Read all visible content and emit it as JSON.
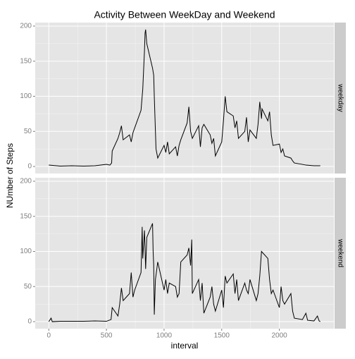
{
  "chart_data": {
    "type": "line",
    "title": "Activity Between WeekDay and Weekend",
    "x_label": "interval",
    "y_label": "NUmber of Steps",
    "xlim": [
      -117.75,
      2472.75
    ],
    "xticks": [
      0,
      500,
      1000,
      1500,
      2000
    ],
    "ylim": [
      -10,
      205
    ],
    "yticks": [
      0,
      50,
      100,
      150,
      200
    ],
    "grid": true,
    "series": [
      {
        "name": "weekday",
        "color": "#000000",
        "x": [
          0,
          100,
          200,
          300,
          400,
          500,
          530,
          545,
          550,
          600,
          615,
          630,
          645,
          700,
          715,
          730,
          745,
          800,
          815,
          830,
          835,
          840,
          850,
          900,
          910,
          915,
          925,
          930,
          945,
          1000,
          1015,
          1030,
          1045,
          1100,
          1115,
          1130,
          1145,
          1200,
          1215,
          1230,
          1245,
          1300,
          1315,
          1330,
          1345,
          1400,
          1415,
          1430,
          1445,
          1500,
          1515,
          1530,
          1545,
          1600,
          1615,
          1630,
          1645,
          1700,
          1715,
          1730,
          1745,
          1800,
          1815,
          1830,
          1845,
          1850,
          1900,
          1915,
          1930,
          1945,
          2000,
          2015,
          2030,
          2045,
          2100,
          2115,
          2130,
          2200,
          2230,
          2300,
          2355
        ],
        "values": [
          2,
          0.5,
          1,
          0.5,
          1,
          3,
          2,
          5,
          22,
          40,
          48,
          58,
          38,
          45,
          35,
          48,
          55,
          80,
          110,
          165,
          190,
          195,
          175,
          140,
          130,
          100,
          50,
          25,
          12,
          30,
          20,
          35,
          18,
          28,
          15,
          30,
          38,
          62,
          85,
          50,
          40,
          58,
          28,
          55,
          60,
          45,
          33,
          40,
          15,
          35,
          65,
          100,
          78,
          72,
          55,
          65,
          40,
          50,
          70,
          35,
          52,
          40,
          60,
          92,
          68,
          82,
          65,
          78,
          45,
          30,
          32,
          20,
          25,
          15,
          12,
          8,
          5,
          3,
          2,
          1,
          1
        ]
      },
      {
        "name": "weekend",
        "color": "#000000",
        "x": [
          0,
          20,
          30,
          100,
          200,
          300,
          400,
          500,
          540,
          550,
          600,
          615,
          630,
          645,
          700,
          715,
          730,
          745,
          800,
          810,
          815,
          830,
          840,
          850,
          900,
          905,
          910,
          915,
          925,
          945,
          1000,
          1015,
          1030,
          1045,
          1100,
          1115,
          1130,
          1145,
          1200,
          1215,
          1230,
          1240,
          1245,
          1300,
          1315,
          1330,
          1345,
          1400,
          1415,
          1430,
          1445,
          1500,
          1515,
          1530,
          1545,
          1600,
          1615,
          1630,
          1645,
          1700,
          1715,
          1730,
          1745,
          1800,
          1815,
          1830,
          1845,
          1900,
          1915,
          1930,
          1945,
          2000,
          2015,
          2030,
          2045,
          2100,
          2115,
          2130,
          2200,
          2230,
          2245,
          2300,
          2330,
          2345,
          2355
        ],
        "values": [
          0,
          5,
          0,
          0.5,
          0.5,
          0.5,
          1,
          0.5,
          3,
          20,
          8,
          25,
          48,
          30,
          40,
          70,
          35,
          45,
          70,
          135,
          90,
          130,
          75,
          120,
          140,
          100,
          80,
          10,
          60,
          85,
          45,
          60,
          40,
          55,
          50,
          35,
          40,
          85,
          95,
          105,
          80,
          117,
          40,
          60,
          30,
          55,
          12,
          35,
          50,
          25,
          15,
          45,
          20,
          65,
          55,
          68,
          40,
          60,
          30,
          55,
          45,
          40,
          60,
          30,
          40,
          65,
          100,
          90,
          60,
          40,
          45,
          20,
          50,
          30,
          25,
          40,
          15,
          5,
          3,
          12,
          2,
          1,
          8,
          1,
          0
        ]
      }
    ]
  }
}
